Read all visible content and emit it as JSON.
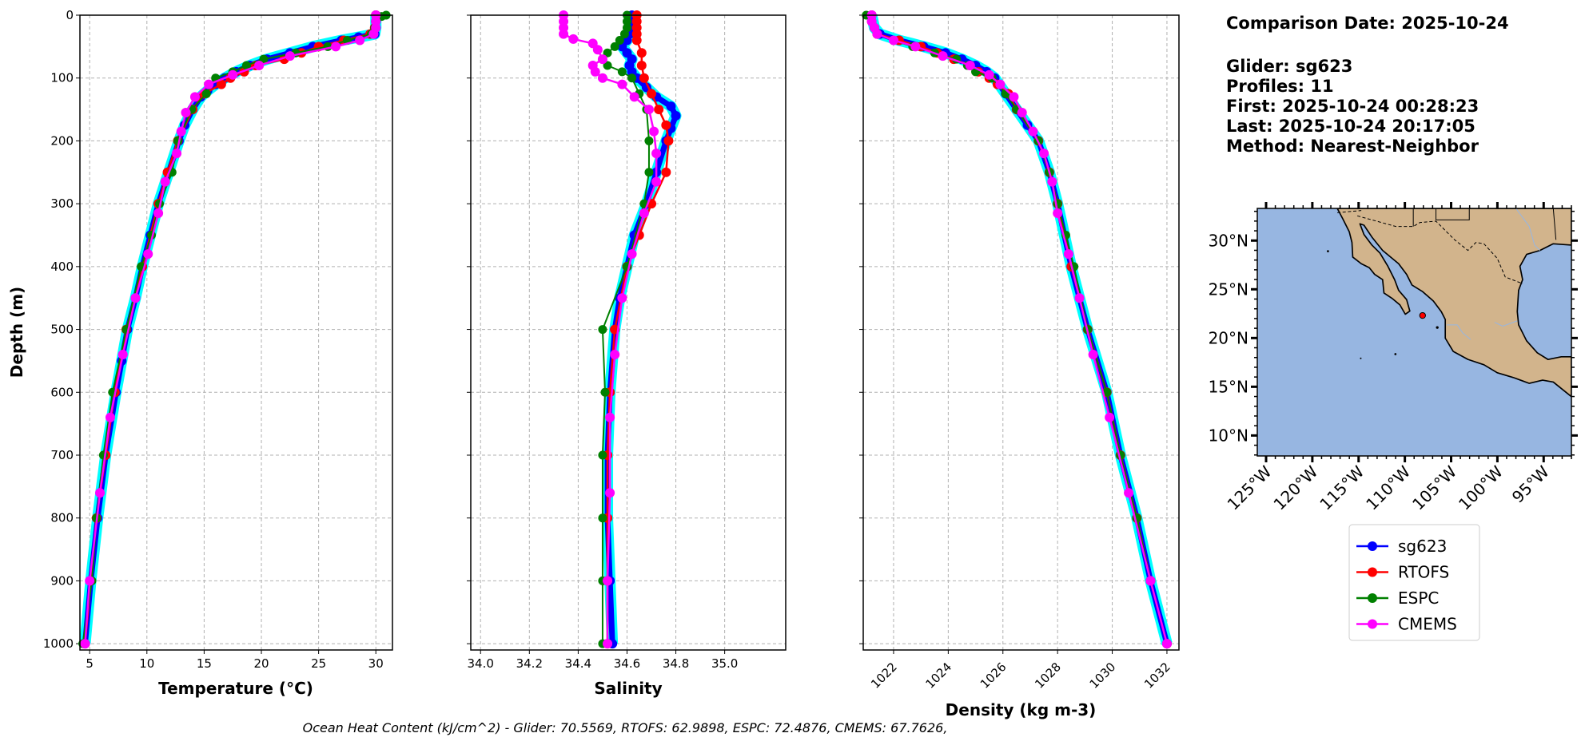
{
  "info": {
    "comparison_date": "Comparison Date: 2025-10-24",
    "glider": "Glider: sg623",
    "profiles": "Profiles: 11",
    "first": "First: 2025-10-24 00:28:23",
    "last": "Last: 2025-10-24 20:17:05",
    "method": "Method: Nearest-Neighbor"
  },
  "caption": "Ocean Heat Content (kJ/cm^2) - Glider: 70.5569,  RTOFS: 62.9898,  ESPC: 72.4876,  CMEMS: 67.7626,",
  "colors": {
    "sg623": "#0000ff",
    "RTOFS": "#ff0000",
    "ESPC": "#008000",
    "CMEMS": "#ff00ff",
    "raw": "#00ffff",
    "ocean": "#97b6e1",
    "land": "#d2b48c"
  },
  "legend": [
    "sg623",
    "RTOFS",
    "ESPC",
    "CMEMS"
  ],
  "chart_data": [
    {
      "type": "line",
      "id": "temperature",
      "xlabel": "Temperature (°C)",
      "ylabel": "Depth (m)",
      "xlim": [
        4.15,
        31.45
      ],
      "ylim": [
        1010,
        0
      ],
      "xticks": [
        5,
        10,
        15,
        20,
        25,
        30
      ],
      "yticks": [
        0,
        100,
        200,
        300,
        400,
        500,
        600,
        700,
        800,
        900,
        1000
      ],
      "series": [
        {
          "name": "sg623",
          "depth": [
            0,
            10,
            20,
            30,
            35,
            40,
            50,
            60,
            70,
            80,
            90,
            100,
            110,
            120,
            130,
            150,
            175,
            200,
            250,
            300,
            350,
            400,
            450,
            500,
            550,
            600,
            700,
            800,
            900,
            1000
          ],
          "values": [
            30.0,
            30.0,
            30.0,
            29.9,
            28.5,
            27.0,
            24.5,
            22.5,
            20.5,
            19.0,
            17.8,
            16.8,
            16.0,
            15.3,
            14.7,
            14.0,
            13.3,
            12.8,
            11.9,
            11.0,
            10.3,
            9.6,
            9.0,
            8.3,
            7.8,
            7.3,
            6.4,
            5.7,
            5.1,
            4.6
          ]
        },
        {
          "name": "RTOFS",
          "depth": [
            0,
            10,
            20,
            30,
            40,
            50,
            60,
            70,
            80,
            90,
            100,
            110,
            125,
            150,
            200,
            250,
            300,
            400,
            500,
            600,
            700,
            800,
            900,
            1000
          ],
          "values": [
            30.0,
            30.0,
            29.9,
            29.5,
            27.2,
            25.0,
            23.5,
            22.0,
            19.5,
            18.5,
            17.3,
            16.5,
            15.0,
            14.0,
            12.7,
            11.8,
            11.0,
            9.6,
            8.2,
            7.2,
            6.4,
            5.6,
            5.1,
            4.6
          ]
        },
        {
          "name": "ESPC",
          "depth": [
            0,
            2,
            10,
            20,
            30,
            40,
            50,
            60,
            70,
            80,
            90,
            100,
            125,
            150,
            200,
            250,
            300,
            350,
            400,
            500,
            600,
            700,
            800,
            900,
            1000
          ],
          "values": [
            30.9,
            30.5,
            30.0,
            29.9,
            29.6,
            27.5,
            25.8,
            23.0,
            20.2,
            18.7,
            17.5,
            16.0,
            15.2,
            13.9,
            12.7,
            12.2,
            11.1,
            10.4,
            9.5,
            8.2,
            7.0,
            6.2,
            5.6,
            5.2,
            4.4
          ]
        },
        {
          "name": "CMEMS",
          "depth": [
            0,
            10,
            20,
            30,
            40,
            50,
            65,
            80,
            95,
            110,
            130,
            155,
            185,
            220,
            265,
            315,
            380,
            450,
            540,
            640,
            760,
            900,
            1000
          ],
          "values": [
            30.0,
            30.0,
            30.0,
            29.8,
            28.6,
            26.5,
            22.5,
            19.8,
            17.5,
            15.4,
            14.2,
            13.4,
            13.0,
            12.6,
            11.6,
            11.0,
            10.1,
            9.0,
            7.9,
            6.8,
            5.9,
            5.0,
            4.6
          ]
        }
      ]
    },
    {
      "type": "line",
      "id": "salinity",
      "xlabel": "Salinity",
      "ylabel": "",
      "xlim": [
        33.96,
        35.25
      ],
      "ylim": [
        1010,
        0
      ],
      "xticks": [
        "34.0",
        "34.2",
        "34.4",
        "34.6",
        "34.8",
        "35.0"
      ],
      "yticks": [
        0,
        100,
        200,
        300,
        400,
        500,
        600,
        700,
        800,
        900,
        1000
      ],
      "series": [
        {
          "name": "sg623",
          "depth": [
            0,
            20,
            30,
            40,
            50,
            60,
            70,
            80,
            90,
            100,
            115,
            130,
            145,
            160,
            180,
            200,
            250,
            300,
            350,
            400,
            450,
            500,
            600,
            700,
            800,
            900,
            1000
          ],
          "values": [
            34.62,
            34.62,
            34.61,
            34.6,
            34.58,
            34.6,
            34.62,
            34.61,
            34.62,
            34.64,
            34.68,
            34.72,
            34.78,
            34.8,
            34.78,
            34.76,
            34.72,
            34.68,
            34.63,
            34.6,
            34.57,
            34.55,
            34.53,
            34.52,
            34.52,
            34.53,
            34.54
          ]
        },
        {
          "name": "RTOFS",
          "depth": [
            0,
            10,
            20,
            30,
            40,
            60,
            80,
            100,
            125,
            150,
            175,
            200,
            250,
            300,
            350,
            400,
            500,
            600,
            700,
            800,
            900,
            1000
          ],
          "values": [
            34.64,
            34.64,
            34.64,
            34.64,
            34.64,
            34.66,
            34.66,
            34.67,
            34.7,
            34.73,
            34.76,
            34.77,
            34.76,
            34.7,
            34.65,
            34.6,
            34.55,
            34.53,
            34.52,
            34.52,
            34.52,
            34.52
          ]
        },
        {
          "name": "ESPC",
          "depth": [
            0,
            10,
            20,
            30,
            40,
            50,
            60,
            70,
            80,
            90,
            100,
            125,
            150,
            200,
            250,
            300,
            400,
            500,
            600,
            700,
            800,
            900,
            1000
          ],
          "values": [
            34.6,
            34.6,
            34.6,
            34.59,
            34.57,
            34.55,
            34.52,
            34.5,
            34.52,
            34.58,
            34.62,
            34.65,
            34.68,
            34.69,
            34.69,
            34.67,
            34.6,
            34.5,
            34.51,
            34.5,
            34.5,
            34.5,
            34.5
          ]
        },
        {
          "name": "CMEMS",
          "depth": [
            0,
            10,
            20,
            30,
            38,
            45,
            55,
            70,
            80,
            90,
            100,
            110,
            130,
            150,
            185,
            220,
            265,
            315,
            380,
            450,
            540,
            640,
            760,
            900,
            1000
          ],
          "values": [
            34.34,
            34.34,
            34.34,
            34.34,
            34.38,
            34.46,
            34.48,
            34.5,
            34.46,
            34.47,
            34.5,
            34.58,
            34.63,
            34.69,
            34.71,
            34.72,
            34.72,
            34.67,
            34.62,
            34.58,
            34.55,
            34.53,
            34.53,
            34.52,
            34.52
          ]
        }
      ]
    },
    {
      "type": "line",
      "id": "density",
      "xlabel": "Density (kg m-3)",
      "ylabel": "",
      "xlim": [
        1020.89,
        1032.44
      ],
      "ylim": [
        1010,
        0
      ],
      "xticks": [
        1022,
        1024,
        1026,
        1028,
        1030,
        1032
      ],
      "yticks": [
        0,
        100,
        200,
        300,
        400,
        500,
        600,
        700,
        800,
        900,
        1000
      ],
      "series": [
        {
          "name": "sg623",
          "depth": [
            0,
            20,
            30,
            40,
            50,
            60,
            70,
            80,
            90,
            100,
            125,
            150,
            175,
            200,
            250,
            300,
            400,
            500,
            600,
            700,
            800,
            900,
            1000
          ],
          "values": [
            1021.2,
            1021.3,
            1021.5,
            1022.2,
            1023.1,
            1023.9,
            1024.5,
            1025.0,
            1025.4,
            1025.7,
            1026.1,
            1026.5,
            1026.9,
            1027.3,
            1027.7,
            1028.0,
            1028.5,
            1029.1,
            1029.8,
            1030.3,
            1030.9,
            1031.4,
            1032.0
          ]
        },
        {
          "name": "RTOFS",
          "depth": [
            0,
            10,
            20,
            30,
            40,
            50,
            60,
            70,
            80,
            90,
            100,
            110,
            125,
            150,
            200,
            250,
            300,
            400,
            500,
            600,
            700,
            800,
            900,
            1000
          ],
          "values": [
            1021.2,
            1021.2,
            1021.3,
            1021.4,
            1022.2,
            1023.0,
            1023.6,
            1024.2,
            1024.8,
            1025.1,
            1025.5,
            1025.8,
            1026.2,
            1026.5,
            1027.3,
            1027.7,
            1028.0,
            1028.5,
            1029.1,
            1029.8,
            1030.3,
            1030.9,
            1031.4,
            1032.0
          ]
        },
        {
          "name": "ESPC",
          "depth": [
            0,
            10,
            20,
            30,
            40,
            50,
            60,
            70,
            80,
            90,
            100,
            125,
            150,
            200,
            250,
            300,
            350,
            400,
            500,
            600,
            700,
            800,
            900,
            1000
          ],
          "values": [
            1021.0,
            1021.2,
            1021.3,
            1021.4,
            1022.0,
            1022.7,
            1023.5,
            1024.3,
            1024.7,
            1025.0,
            1025.6,
            1026.1,
            1026.5,
            1027.3,
            1027.7,
            1028.0,
            1028.3,
            1028.6,
            1029.1,
            1029.8,
            1030.3,
            1030.9,
            1031.4,
            1032.0
          ]
        },
        {
          "name": "CMEMS",
          "depth": [
            0,
            10,
            20,
            30,
            40,
            50,
            65,
            80,
            95,
            110,
            130,
            155,
            185,
            220,
            265,
            315,
            380,
            450,
            540,
            640,
            760,
            900,
            1000
          ],
          "values": [
            1021.2,
            1021.2,
            1021.3,
            1021.4,
            1022.0,
            1022.8,
            1023.8,
            1024.8,
            1025.5,
            1025.9,
            1026.4,
            1026.7,
            1027.1,
            1027.5,
            1027.8,
            1028.0,
            1028.4,
            1028.8,
            1029.3,
            1029.9,
            1030.6,
            1031.4,
            1032.0
          ]
        }
      ]
    }
  ],
  "map": {
    "lon_range": [
      -125.95,
      -92.0
    ],
    "lat_range": [
      7.9,
      33.3
    ],
    "lon_ticks": [
      "125°W",
      "120°W",
      "115°W",
      "110°W",
      "105°W",
      "100°W",
      "95°W"
    ],
    "lon_tick_values": [
      -125,
      -120,
      -115,
      -110,
      -105,
      -100,
      -95
    ],
    "lat_ticks": [
      "30°N",
      "25°N",
      "20°N",
      "15°N",
      "10°N"
    ],
    "lat_tick_values": [
      30,
      25,
      20,
      15,
      10
    ],
    "glider_position": {
      "lon": -108.1,
      "lat": 22.3
    }
  }
}
